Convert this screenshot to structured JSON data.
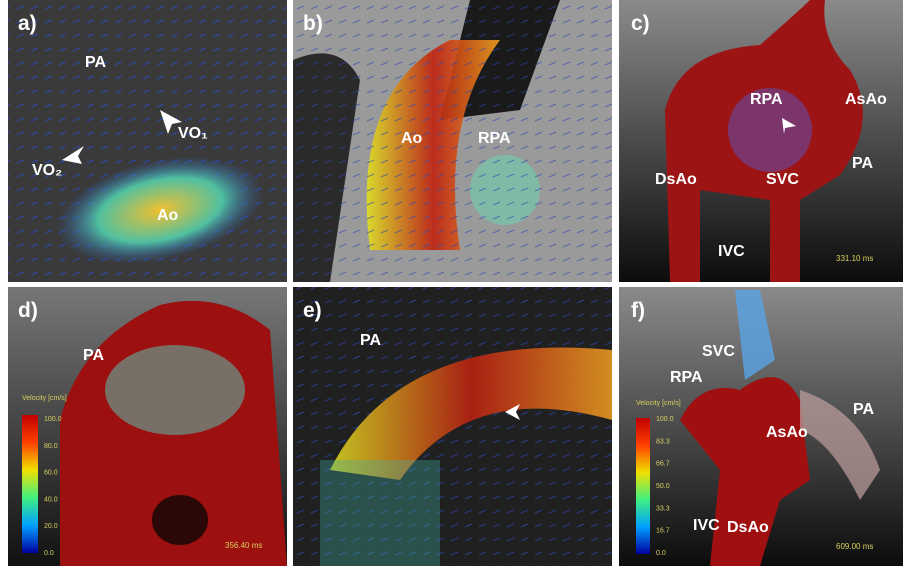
{
  "panels": [
    {
      "label": "a)",
      "annotations": [
        "PA",
        "VO₁",
        "VO₂",
        "Ao"
      ]
    },
    {
      "label": "b)",
      "annotations": [
        "Ao",
        "RPA"
      ]
    },
    {
      "label": "c)",
      "annotations": [
        "RPA",
        "AsAo",
        "PA",
        "DsAo",
        "SVC",
        "IVC"
      ],
      "time": "331.10 ms"
    },
    {
      "label": "d)",
      "annotations": [
        "PA"
      ],
      "colorbar": {
        "title": "Velocity [cm/s]",
        "ticks": [
          "100.0",
          "80.0",
          "60.0",
          "40.0",
          "20.0",
          "0.0"
        ]
      },
      "time": "356.40 ms"
    },
    {
      "label": "e)",
      "annotations": [
        "PA"
      ]
    },
    {
      "label": "f)",
      "annotations": [
        "SVC",
        "RPA",
        "PA",
        "AsAo",
        "IVC",
        "DsAo"
      ],
      "colorbar": {
        "title": "Velocity [cm/s]",
        "ticks": [
          "100.0",
          "83.3",
          "66.7",
          "50.0",
          "33.3",
          "16.7",
          "0.0"
        ]
      },
      "time": "609.00 ms"
    }
  ]
}
